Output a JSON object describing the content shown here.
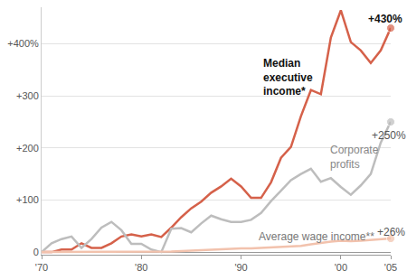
{
  "chart_data": {
    "type": "line",
    "x": [
      1970,
      1971,
      1972,
      1973,
      1974,
      1975,
      1976,
      1977,
      1978,
      1979,
      1980,
      1981,
      1982,
      1983,
      1984,
      1985,
      1986,
      1987,
      1988,
      1989,
      1990,
      1991,
      1992,
      1993,
      1994,
      1995,
      1996,
      1997,
      1998,
      1999,
      2000,
      2001,
      2002,
      2003,
      2004,
      2005
    ],
    "series": [
      {
        "name": "Median executive income*",
        "color": "#d5614a",
        "marker": "end_dot",
        "values": [
          0,
          0,
          5,
          5,
          17,
          8,
          8,
          17,
          30,
          34,
          30,
          34,
          29,
          47,
          67,
          84,
          97,
          114,
          126,
          141,
          126,
          104,
          104,
          134,
          181,
          202,
          261,
          311,
          303,
          412,
          464,
          403,
          387,
          363,
          387,
          430
        ]
      },
      {
        "name": "Corporate profits",
        "color": "#bdbdbd",
        "marker": "end_dot",
        "values": [
          0,
          17,
          25,
          30,
          8,
          25,
          47,
          58,
          42,
          16,
          16,
          5,
          0,
          45,
          46,
          38,
          55,
          70,
          63,
          58,
          58,
          62,
          75,
          98,
          118,
          138,
          150,
          160,
          135,
          142,
          125,
          110,
          128,
          150,
          210,
          250
        ]
      },
      {
        "name": "Average wage income**",
        "color": "#f2c2ad",
        "marker": "end_dot",
        "values": [
          0,
          0,
          0,
          0,
          0,
          0,
          0,
          0,
          0,
          0,
          0,
          0,
          0,
          1,
          2,
          3,
          4,
          5,
          6,
          6,
          7,
          7,
          8,
          9,
          10,
          10,
          12,
          15,
          18,
          20,
          22,
          21,
          22,
          23,
          25,
          26
        ]
      }
    ],
    "xlim": [
      1970,
      2005
    ],
    "xticks": [
      {
        "value": 1970,
        "label": "'70"
      },
      {
        "value": 1980,
        "label": "'80"
      },
      {
        "value": 1990,
        "label": "'90"
      },
      {
        "value": 2000,
        "label": "'00"
      },
      {
        "value": 2005,
        "label": "'05"
      }
    ],
    "ylim": [
      -5,
      470
    ],
    "yticks": [
      0,
      {
        "value": 100,
        "label": "+100"
      },
      {
        "value": 200,
        "label": "+200"
      },
      {
        "value": 300,
        "label": "+300"
      },
      {
        "value": 400,
        "label": "+400%"
      }
    ],
    "grid": true,
    "annotations": [
      {
        "text": "Median\nexecutive\nincome*",
        "x": 1992,
        "y": 336,
        "color": "#111111",
        "bold": true
      },
      {
        "text": "Corporate\nprofits",
        "x": 1998.7,
        "y": 182,
        "color": "#888888"
      },
      {
        "text": "Average wage income**",
        "x": 1991.6,
        "y": 29,
        "color": "#777777"
      },
      {
        "text": "+430%",
        "x": 2004.5,
        "y": 447,
        "color": "#111111",
        "bold": true
      },
      {
        "text": "+250%",
        "x": 2004.8,
        "y": 224,
        "color": "#555555"
      },
      {
        "text": "+26%",
        "x": 2005,
        "y": 39,
        "color": "#555555"
      }
    ]
  }
}
